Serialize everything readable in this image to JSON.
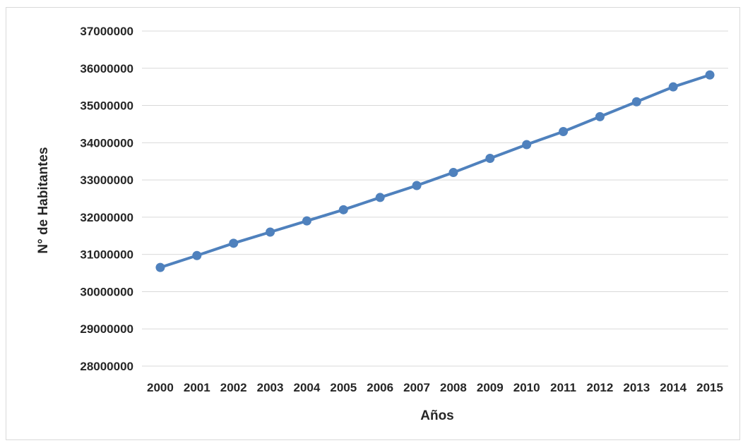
{
  "chart_data": {
    "type": "line",
    "title": "",
    "xlabel": "Años",
    "ylabel": "N° de Habitantes",
    "categories": [
      "2000",
      "2001",
      "2002",
      "2003",
      "2004",
      "2005",
      "2006",
      "2007",
      "2008",
      "2009",
      "2010",
      "2011",
      "2012",
      "2013",
      "2014",
      "2015"
    ],
    "y_ticks": [
      "28000000",
      "29000000",
      "30000000",
      "31000000",
      "32000000",
      "33000000",
      "34000000",
      "35000000",
      "36000000",
      "37000000"
    ],
    "ylim": [
      28000000,
      37000000
    ],
    "grid": true,
    "legend": "none",
    "series": [
      {
        "values": [
          30650000,
          30970000,
          31300000,
          31600000,
          31900000,
          32200000,
          32530000,
          32850000,
          33200000,
          33580000,
          33950000,
          34300000,
          34700000,
          35100000,
          35500000,
          35820000
        ],
        "color": "#4f81bd"
      }
    ]
  }
}
